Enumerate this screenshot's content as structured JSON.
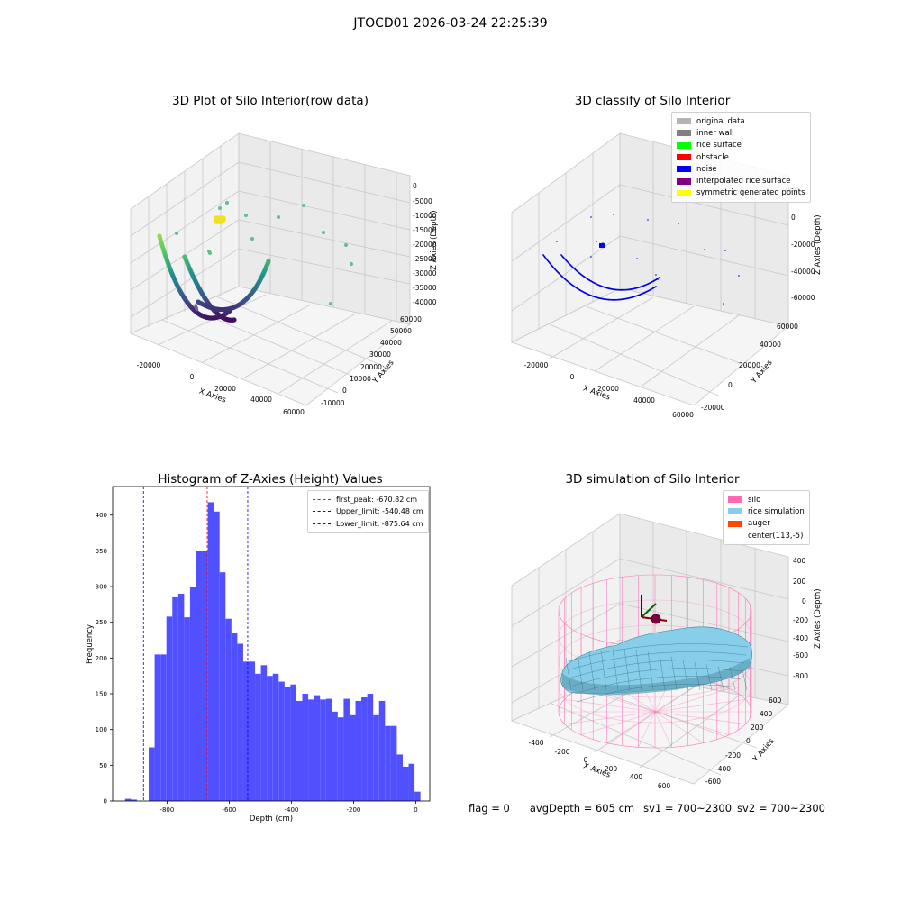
{
  "suptitle": "JTOCD01 2026-03-24 22:25:39",
  "panels": {
    "raw": {
      "title": "3D Plot of Silo Interior(row data)",
      "xlabel": "X Axies",
      "ylabel": "Y Axies",
      "zlabel": "Z Axies (Depth)",
      "xticks": [
        "-20000",
        "0",
        "20000",
        "40000",
        "60000"
      ],
      "yticks": [
        "-10000",
        "0",
        "10000",
        "20000",
        "30000",
        "40000",
        "50000",
        "60000"
      ],
      "zticks": [
        "0",
        "-5000",
        "-10000",
        "-15000",
        "-20000",
        "-25000",
        "-30000",
        "-35000",
        "-40000"
      ]
    },
    "classify": {
      "title": "3D classify of Silo Interior",
      "xlabel": "X Axies",
      "ylabel": "Y Axies",
      "zlabel": "Z Axies (Depth)",
      "xticks": [
        "-20000",
        "0",
        "20000",
        "40000",
        "60000"
      ],
      "yticks": [
        "-20000",
        "0",
        "20000",
        "40000",
        "60000"
      ],
      "zticks": [
        "000",
        "0",
        "-20000",
        "-40000",
        "-60000"
      ],
      "legend": [
        {
          "label": "original data",
          "color": "#b3b3b3"
        },
        {
          "label": "inner wall",
          "color": "#808080"
        },
        {
          "label": "rice surface",
          "color": "#00ff00"
        },
        {
          "label": "obstacle",
          "color": "#ff0000"
        },
        {
          "label": "noise",
          "color": "#0000ff"
        },
        {
          "label": "interpolated rice surface",
          "color": "#800080"
        },
        {
          "label": "symmetric generated points",
          "color": "#ffff00"
        }
      ]
    },
    "simulation": {
      "title": "3D simulation of Silo Interior",
      "xlabel": "X Axies",
      "ylabel": "Y Axies",
      "zlabel": "Z Axies (Depth)",
      "xticks": [
        "-400",
        "-200",
        "0",
        "200",
        "400",
        "600"
      ],
      "yticks": [
        "-600",
        "-400",
        "-200",
        "0",
        "200",
        "400",
        "600"
      ],
      "zticks": [
        "400",
        "200",
        "0",
        "-200",
        "-400",
        "-600",
        "-800"
      ],
      "legend": [
        {
          "label": "silo",
          "color": "#ff69b4"
        },
        {
          "label": "rice simulation",
          "color": "#87ceeb"
        },
        {
          "label": "auger",
          "color": "#ff4500"
        },
        {
          "label": "center(113,-5)",
          "color": ""
        }
      ]
    }
  },
  "status": {
    "flag": "flag = 0",
    "avg": "avgDepth = 605 cm",
    "sv1": "sv1 = 700~2300",
    "sv2": "sv2 = 700~2300"
  },
  "chart_data": {
    "type": "bar",
    "title": "Histogram of Z-Axies (Height) Values",
    "xlabel": "Depth (cm)",
    "ylabel": "Frequency",
    "xlim": [
      -975,
      45
    ],
    "ylim": [
      0,
      440
    ],
    "xticks": [
      -800,
      -600,
      -400,
      -200,
      0
    ],
    "yticks": [
      0,
      50,
      100,
      150,
      200,
      250,
      300,
      350,
      400
    ],
    "bin_width": 19,
    "bin_start": -935,
    "values": [
      3,
      2,
      0,
      0,
      75,
      205,
      205,
      258,
      285,
      290,
      257,
      300,
      350,
      350,
      418,
      405,
      320,
      255,
      235,
      220,
      195,
      195,
      178,
      190,
      175,
      178,
      167,
      160,
      163,
      140,
      150,
      142,
      148,
      142,
      143,
      125,
      117,
      143,
      120,
      140,
      145,
      150,
      120,
      140,
      105,
      105,
      65,
      48,
      52,
      13
    ],
    "lines": [
      {
        "name": "first_peak: -670.82 cm",
        "x": -670.82,
        "color": "#ff0000"
      },
      {
        "name": "Upper_limit: -540.48 cm",
        "x": -540.48,
        "color": "#0000ff"
      },
      {
        "name": "Lower_limit: -875.64 cm",
        "x": -875.64,
        "color": "#0000ff"
      }
    ]
  }
}
